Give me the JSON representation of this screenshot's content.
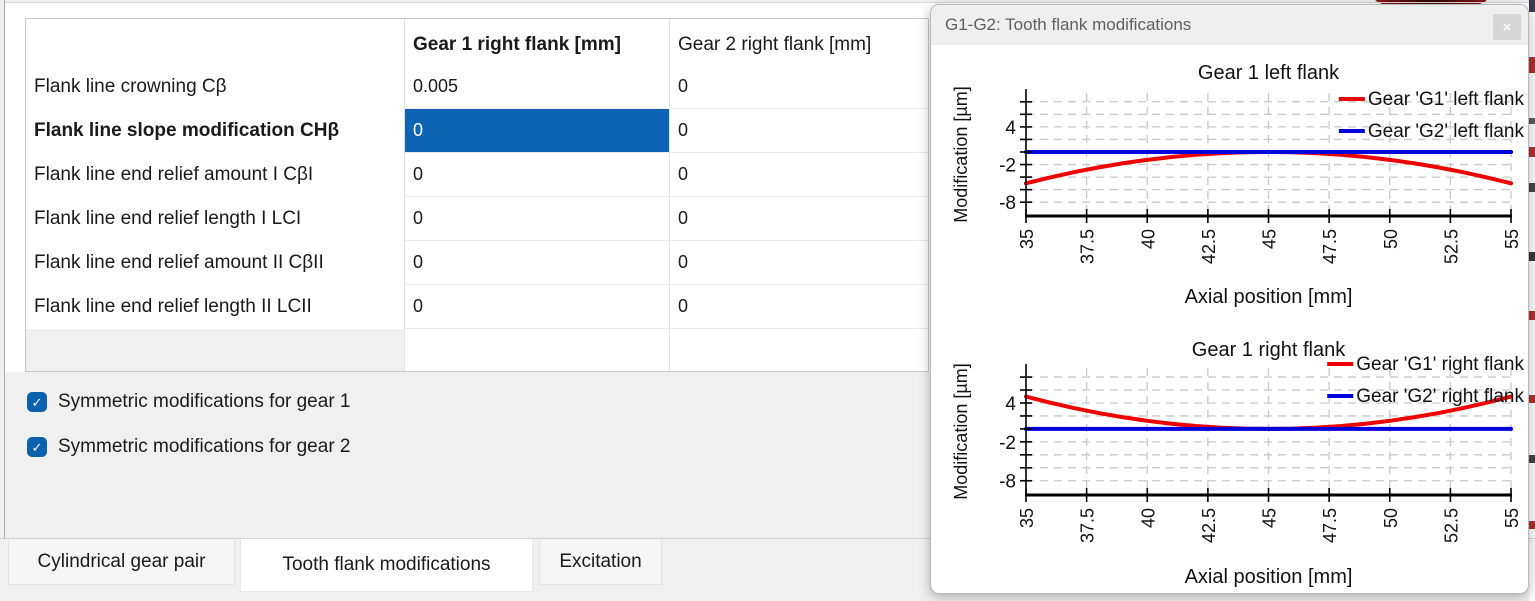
{
  "table": {
    "header": {
      "col1": "",
      "col2": "Gear 1 right flank [mm]",
      "col3": "Gear 2 right flank [mm]"
    },
    "rows": [
      {
        "label": "Flank line crowning Cβ",
        "gear1": "0.005",
        "gear2": "0",
        "bold": false,
        "selected_cell": null
      },
      {
        "label": "Flank line slope modification CHβ",
        "gear1": "0",
        "gear2": "0",
        "bold": true,
        "selected_cell": "gear1"
      },
      {
        "label": "Flank line end relief amount I CβI",
        "gear1": "0",
        "gear2": "0",
        "bold": false,
        "selected_cell": null
      },
      {
        "label": "Flank line end relief length I LCI",
        "gear1": "0",
        "gear2": "0",
        "bold": false,
        "selected_cell": null
      },
      {
        "label": "Flank line end relief amount II CβII",
        "gear1": "0",
        "gear2": "0",
        "bold": false,
        "selected_cell": null
      },
      {
        "label": "Flank line end relief length II LCII",
        "gear1": "0",
        "gear2": "0",
        "bold": false,
        "selected_cell": null
      }
    ]
  },
  "checkboxes": [
    {
      "label": "Symmetric modifications for gear 1",
      "checked": true,
      "check_glyph": "✓"
    },
    {
      "label": "Symmetric modifications for gear 2",
      "checked": true,
      "check_glyph": "✓"
    }
  ],
  "tabs": [
    {
      "label": "Cylindrical gear pair",
      "active": false
    },
    {
      "label": "Tooth flank modifications",
      "active": true
    },
    {
      "label": "Excitation",
      "active": false
    }
  ],
  "floating_window": {
    "title": "G1-G2: Tooth flank modifications",
    "close_label": "×"
  },
  "colors": {
    "selection_blue": "#0d64b4",
    "checkbox_blue": "#0b61ad",
    "series_red": "#ee0000",
    "series_blue": "#0000dd"
  },
  "chart_data": [
    {
      "type": "line",
      "title": "Gear 1 left flank",
      "xlabel": "Axial position [mm]",
      "ylabel": "Modification [µm]",
      "xlim": [
        35,
        55
      ],
      "ylim": [
        -10.2,
        9.4
      ],
      "xticks": [
        35,
        37.5,
        40,
        42.5,
        45,
        47.5,
        50,
        52.5,
        55
      ],
      "yticks": [
        8,
        6,
        4,
        2,
        0,
        -2,
        -4,
        -6,
        -8
      ],
      "ytick_labels": [
        4,
        -2,
        -8
      ],
      "grid": true,
      "legend_position": "top-right",
      "series": [
        {
          "name": "Gear 'G1' left flank",
          "color": "#ee0000",
          "x": [
            35,
            36,
            37,
            38,
            39,
            40,
            41,
            42,
            43,
            44,
            45,
            46,
            47,
            48,
            49,
            50,
            51,
            52,
            53,
            54,
            55
          ],
          "y": [
            -5,
            -4.05,
            -3.2,
            -2.45,
            -1.8,
            -1.25,
            -0.8,
            -0.45,
            -0.2,
            -0.05,
            0,
            -0.05,
            -0.2,
            -0.45,
            -0.8,
            -1.25,
            -1.8,
            -2.45,
            -3.2,
            -4.05,
            -5
          ]
        },
        {
          "name": "Gear 'G2' left flank",
          "color": "#0000dd",
          "x": [
            35,
            55
          ],
          "y": [
            0,
            0
          ]
        }
      ]
    },
    {
      "type": "line",
      "title": "Gear 1 right flank",
      "xlabel": "Axial position [mm]",
      "ylabel": "Modification [µm]",
      "xlim": [
        35,
        55
      ],
      "ylim": [
        -10.2,
        9.4
      ],
      "xticks": [
        35,
        37.5,
        40,
        42.5,
        45,
        47.5,
        50,
        52.5,
        55
      ],
      "yticks": [
        8,
        6,
        4,
        2,
        0,
        -2,
        -4,
        -6,
        -8
      ],
      "ytick_labels": [
        4,
        -2,
        -8
      ],
      "grid": true,
      "legend_position": "top-right",
      "series": [
        {
          "name": "Gear 'G1' right flank",
          "color": "#ee0000",
          "x": [
            35,
            36,
            37,
            38,
            39,
            40,
            41,
            42,
            43,
            44,
            45,
            46,
            47,
            48,
            49,
            50,
            51,
            52,
            53,
            54,
            55
          ],
          "y": [
            5,
            4.05,
            3.2,
            2.45,
            1.8,
            1.25,
            0.8,
            0.45,
            0.2,
            0.05,
            0,
            0.05,
            0.2,
            0.45,
            0.8,
            1.25,
            1.8,
            2.45,
            3.2,
            4.05,
            5
          ]
        },
        {
          "name": "Gear 'G2' right flank",
          "color": "#0000dd",
          "x": [
            35,
            55
          ],
          "y": [
            0,
            0
          ]
        }
      ]
    }
  ]
}
